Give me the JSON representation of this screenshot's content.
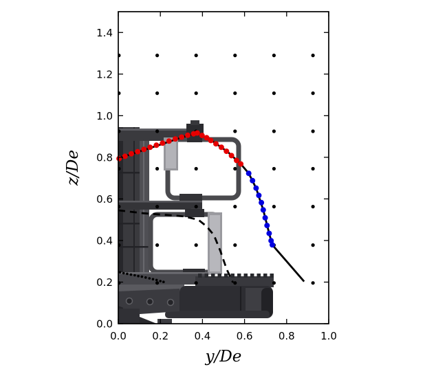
{
  "chart_data": {
    "type": "scatter",
    "title": "",
    "xlabel": "y/De",
    "ylabel": "z/De",
    "xlim": [
      0.0,
      1.0
    ],
    "ylim": [
      0.0,
      1.5
    ],
    "x_tick_values": [
      0.0,
      0.2,
      0.4,
      0.6,
      0.8,
      1.0
    ],
    "x_tick_labels": [
      "0.0",
      "0.2",
      "0.4",
      "0.6",
      "0.8",
      "1.0"
    ],
    "y_tick_values": [
      0.0,
      0.2,
      0.4,
      0.6,
      0.8,
      1.0,
      1.2,
      1.4
    ],
    "y_tick_labels": [
      "0.0",
      "0.2",
      "0.4",
      "0.6",
      "0.8",
      "1.0",
      "1.2",
      "1.4"
    ],
    "legend": "none",
    "grid_lines": false,
    "ticks_on_all_sides": true,
    "background": "grayscale photo of experimental nozzle/traverse apparatus with two square frames",
    "grid_markers": {
      "name": "measurement-grid-dots",
      "color": "#000000",
      "x_values": [
        0.003,
        0.185,
        0.37,
        0.555,
        0.74,
        0.925
      ],
      "z_values": [
        0.196,
        0.378,
        0.563,
        0.745,
        0.925,
        1.108,
        1.29
      ]
    },
    "series": [
      {
        "name": "jet-trajectory-line",
        "type": "line",
        "style": "solid",
        "color": "#000000",
        "points": [
          [
            0.0,
            0.795
          ],
          [
            0.1,
            0.828
          ],
          [
            0.2,
            0.861
          ],
          [
            0.3,
            0.895
          ],
          [
            0.375,
            0.917
          ],
          [
            0.45,
            0.876
          ],
          [
            0.52,
            0.826
          ],
          [
            0.582,
            0.768
          ],
          [
            0.62,
            0.723
          ],
          [
            0.655,
            0.652
          ],
          [
            0.689,
            0.547
          ],
          [
            0.717,
            0.434
          ],
          [
            0.732,
            0.379
          ],
          [
            0.81,
            0.288
          ],
          [
            0.883,
            0.203
          ]
        ]
      },
      {
        "name": "trajectory-markers-red",
        "type": "scatter",
        "color": "#e60000",
        "points": [
          [
            0.004,
            0.794
          ],
          [
            0.032,
            0.805
          ],
          [
            0.062,
            0.817
          ],
          [
            0.092,
            0.827
          ],
          [
            0.122,
            0.838
          ],
          [
            0.151,
            0.848
          ],
          [
            0.181,
            0.858
          ],
          [
            0.21,
            0.868
          ],
          [
            0.241,
            0.878
          ],
          [
            0.271,
            0.888
          ],
          [
            0.301,
            0.897
          ],
          [
            0.33,
            0.906
          ],
          [
            0.358,
            0.913
          ],
          [
            0.375,
            0.917
          ],
          [
            0.398,
            0.905
          ],
          [
            0.42,
            0.894
          ],
          [
            0.44,
            0.881
          ],
          [
            0.464,
            0.865
          ],
          [
            0.49,
            0.848
          ],
          [
            0.514,
            0.829
          ],
          [
            0.538,
            0.808
          ],
          [
            0.562,
            0.785
          ],
          [
            0.582,
            0.768
          ]
        ]
      },
      {
        "name": "trajectory-markers-blue",
        "type": "scatter",
        "color": "#0000e0",
        "points": [
          [
            0.62,
            0.723
          ],
          [
            0.638,
            0.688
          ],
          [
            0.655,
            0.652
          ],
          [
            0.668,
            0.617
          ],
          [
            0.68,
            0.582
          ],
          [
            0.689,
            0.547
          ],
          [
            0.698,
            0.509
          ],
          [
            0.707,
            0.472
          ],
          [
            0.717,
            0.434
          ],
          [
            0.726,
            0.399
          ],
          [
            0.732,
            0.379
          ]
        ]
      },
      {
        "name": "boundary-dashed-line",
        "type": "line",
        "style": "dashed",
        "color": "#000000",
        "points": [
          [
            0.0,
            0.545
          ],
          [
            0.12,
            0.531
          ],
          [
            0.24,
            0.522
          ],
          [
            0.31,
            0.516
          ],
          [
            0.38,
            0.5
          ],
          [
            0.42,
            0.468
          ],
          [
            0.455,
            0.425
          ],
          [
            0.485,
            0.35
          ],
          [
            0.515,
            0.262
          ],
          [
            0.545,
            0.198
          ]
        ]
      },
      {
        "name": "wall-dotted-line",
        "type": "line",
        "style": "dotted",
        "color": "#000000",
        "points": [
          [
            0.008,
            0.247
          ],
          [
            0.025,
            0.243
          ],
          [
            0.042,
            0.24
          ],
          [
            0.06,
            0.236
          ],
          [
            0.078,
            0.233
          ],
          [
            0.095,
            0.229
          ],
          [
            0.112,
            0.226
          ],
          [
            0.13,
            0.222
          ],
          [
            0.148,
            0.218
          ],
          [
            0.165,
            0.214
          ],
          [
            0.182,
            0.21
          ],
          [
            0.2,
            0.205
          ],
          [
            0.215,
            0.201
          ]
        ]
      }
    ]
  }
}
